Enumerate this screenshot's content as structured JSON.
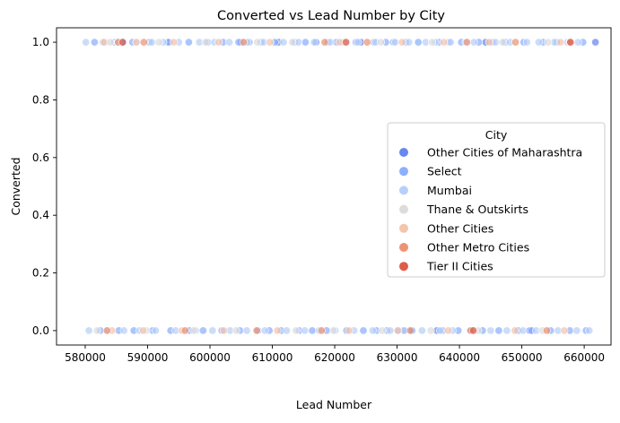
{
  "chart_data": {
    "type": "scatter",
    "title": "Converted vs Lead Number by City",
    "xlabel": "Lead Number",
    "ylabel": "Converted",
    "xlim": [
      575400,
      664300
    ],
    "ylim": [
      -0.05,
      1.05
    ],
    "xticks": [
      580000,
      590000,
      600000,
      610000,
      620000,
      630000,
      640000,
      650000,
      660000
    ],
    "yticks": [
      0.0,
      0.2,
      0.4,
      0.6,
      0.8,
      1.0
    ],
    "grid": false,
    "legend": {
      "title": "City",
      "position": "center-right",
      "entries": [
        {
          "name": "Other Cities of Maharashtra",
          "color": "#6788ee"
        },
        {
          "name": "Select",
          "color": "#8caffe"
        },
        {
          "name": "Mumbai",
          "color": "#b8d0f9"
        },
        {
          "name": "Thane & Outskirts",
          "color": "#dddcdc"
        },
        {
          "name": "Other Cities",
          "color": "#f4c5ad"
        },
        {
          "name": "Other Metro Cities",
          "color": "#ec9374"
        },
        {
          "name": "Tier II Cities",
          "color": "#dc5d4a"
        }
      ]
    },
    "series": [
      {
        "name": "Other Cities of Maharashtra",
        "x": [
          586000,
          593500,
          605000,
          611000,
          617000,
          624200,
          631000,
          632300,
          636400,
          644200,
          651300,
          661800
        ],
        "y": [
          1,
          1,
          1,
          1,
          1,
          1,
          0,
          0,
          0,
          1,
          0,
          1
        ]
      },
      {
        "name": "Select",
        "x": [
          581500,
          583200,
          584700,
          587600,
          590300,
          593300,
          596600,
          599600,
          602100,
          604600,
          606300,
          608200,
          610400,
          613600,
          615300,
          617000,
          618900,
          620300,
          623400,
          626300,
          628200,
          629400,
          631400,
          633400,
          636700,
          638300,
          640300,
          643100,
          645300,
          647300,
          650300,
          653400,
          655600,
          659800,
          582400,
          585400,
          587800,
          590800,
          593700,
          596700,
          598900,
          601900,
          604800,
          607700,
          609500,
          611400,
          614300,
          616400,
          618700,
          621900,
          624600,
          626700,
          628400,
          630200,
          632400,
          637300,
          639800,
          641700,
          643700,
          646300,
          649400,
          651600,
          654600,
          657700,
          660300
        ],
        "y": [
          1,
          1,
          1,
          1,
          1,
          1,
          1,
          1,
          1,
          1,
          1,
          1,
          1,
          1,
          1,
          1,
          1,
          1,
          1,
          1,
          1,
          1,
          1,
          1,
          1,
          1,
          1,
          1,
          1,
          1,
          1,
          1,
          1,
          1,
          0,
          0,
          0,
          0,
          0,
          0,
          0,
          0,
          0,
          0,
          0,
          0,
          0,
          0,
          0,
          0,
          0,
          0,
          0,
          0,
          0,
          0,
          0,
          0,
          0,
          0,
          0,
          0,
          0,
          0,
          0
        ]
      },
      {
        "name": "Mumbai",
        "x": [
          580100,
          582800,
          585200,
          588300,
          590700,
          592500,
          595000,
          598300,
          600700,
          603100,
          606000,
          608600,
          611800,
          614200,
          616700,
          619300,
          621300,
          623700,
          626600,
          629700,
          631900,
          634600,
          636100,
          638600,
          641000,
          642300,
          645800,
          648100,
          650800,
          652700,
          655200,
          657300,
          659000,
          580600,
          583600,
          586200,
          588700,
          591300,
          594500,
          597700,
          600400,
          603200,
          605900,
          608800,
          612300,
          615200,
          617500,
          620100,
          623100,
          626100,
          628900,
          631200,
          634000,
          636900,
          638900,
          642300,
          645000,
          647600,
          650200,
          652300,
          655800,
          658800,
          660800
        ],
        "y": [
          1,
          1,
          1,
          1,
          1,
          1,
          1,
          1,
          1,
          1,
          1,
          1,
          1,
          1,
          1,
          1,
          1,
          1,
          1,
          1,
          1,
          1,
          1,
          1,
          1,
          1,
          1,
          1,
          1,
          1,
          1,
          1,
          1,
          0,
          0,
          0,
          0,
          0,
          0,
          0,
          0,
          0,
          0,
          0,
          0,
          0,
          0,
          0,
          0,
          0,
          0,
          0,
          0,
          0,
          0,
          0,
          0,
          0,
          0,
          0,
          0,
          0,
          0
        ]
      },
      {
        "name": "Thane & Outskirts",
        "x": [
          584000,
          591800,
          599300,
          607600,
          613200,
          621900,
          627400,
          635600,
          646900,
          654200,
          581900,
          589800,
          597400,
          604200,
          613800,
          619800,
          627600,
          635400,
          643000,
          653300
        ],
        "y": [
          1,
          1,
          1,
          1,
          1,
          1,
          1,
          1,
          1,
          1,
          0,
          0,
          0,
          0,
          0,
          0,
          0,
          0,
          0,
          0
        ]
      },
      {
        "name": "Other Cities",
        "x": [
          583000,
          588200,
          594200,
          601400,
          609600,
          620800,
          630800,
          637500,
          644800,
          656200,
          584300,
          589300,
          595500,
          602200,
          610800,
          622300,
          630100,
          638200,
          648900,
          656800
        ],
        "y": [
          1,
          1,
          1,
          1,
          1,
          1,
          1,
          1,
          1,
          1,
          0,
          0,
          0,
          0,
          0,
          0,
          0,
          0,
          0,
          0
        ]
      },
      {
        "name": "Other Metro Cities",
        "x": [
          585300,
          589400,
          605400,
          618400,
          625200,
          641200,
          649000,
          657700,
          583500,
          596000,
          607500,
          617900,
          632100,
          641800,
          654000
        ],
        "y": [
          1,
          1,
          1,
          1,
          1,
          1,
          1,
          1,
          0,
          0,
          0,
          0,
          0,
          0,
          0
        ]
      },
      {
        "name": "Tier II Cities",
        "x": [
          586000,
          621800,
          657800,
          642200
        ],
        "y": [
          1,
          1,
          1,
          0
        ]
      }
    ]
  }
}
